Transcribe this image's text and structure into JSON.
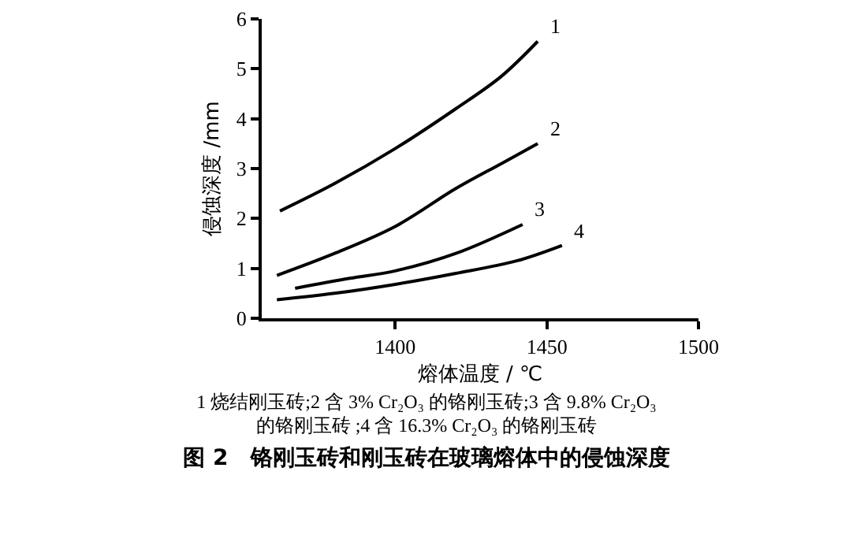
{
  "chart_data": {
    "type": "line",
    "title": "图 2　铬刚玉砖和刚玉砖在玻璃熔体中的侵蚀深度",
    "xlabel": "熔体温度 / ℃",
    "ylabel": "侵蚀深度 /mm",
    "annotations": [
      "1 烧结刚玉砖;2 含 3% Cr₂O₃ 的铬刚玉砖;3 含 9.8% Cr₂O₃ 的铬刚玉砖 ;4 含 16.3% Cr₂O₃ 的铬刚玉砖"
    ],
    "xlim": [
      1356,
      1500
    ],
    "xticks": [
      1400,
      1450,
      1500
    ],
    "ylim": [
      0,
      6
    ],
    "yticks": [
      0,
      1,
      2,
      3,
      4,
      5,
      6
    ],
    "grid": false,
    "legend": false,
    "marker": "none",
    "line_style": "solid",
    "series": [
      {
        "name": "1",
        "color": "#000000",
        "x": [
          1362,
          1380,
          1400,
          1420,
          1435,
          1447
        ],
        "values": [
          2.15,
          2.7,
          3.4,
          4.2,
          4.85,
          5.55
        ]
      },
      {
        "name": "2",
        "color": "#000000",
        "x": [
          1361,
          1380,
          1400,
          1420,
          1435,
          1447
        ],
        "values": [
          0.86,
          1.3,
          1.84,
          2.6,
          3.1,
          3.5
        ]
      },
      {
        "name": "3",
        "color": "#000000",
        "x": [
          1367,
          1385,
          1400,
          1420,
          1442
        ],
        "values": [
          0.6,
          0.8,
          0.95,
          1.3,
          1.88
        ]
      },
      {
        "name": "4",
        "color": "#000000",
        "x": [
          1361,
          1380,
          1400,
          1420,
          1440,
          1455
        ],
        "values": [
          0.37,
          0.5,
          0.68,
          0.9,
          1.15,
          1.46
        ]
      }
    ]
  }
}
